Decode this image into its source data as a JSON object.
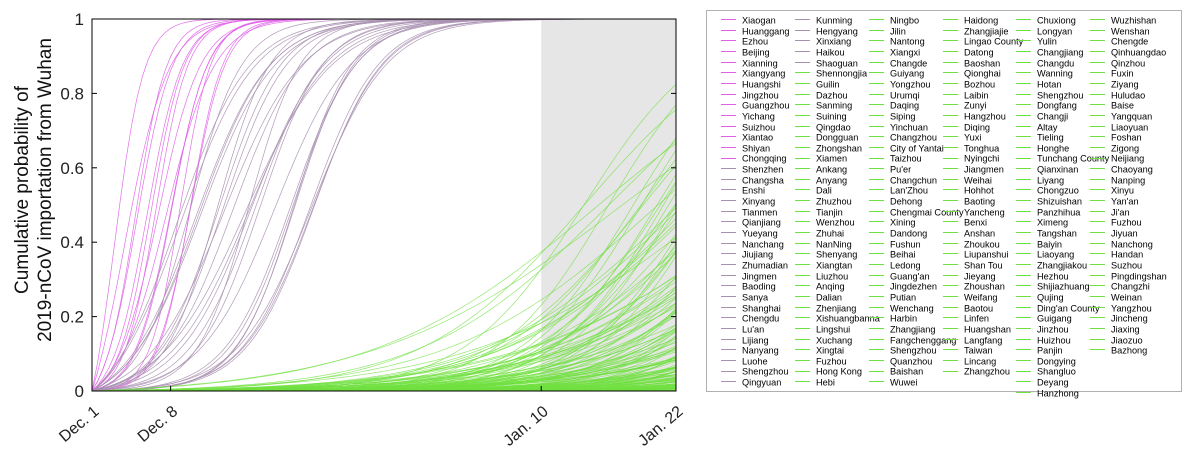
{
  "chart_data": {
    "type": "line",
    "xlabel": "",
    "ylabel_lines": [
      "Cumulative probability of",
      "2019-nCoV importation from Wuhan"
    ],
    "x_ticks": [
      "Dec. 1",
      "Dec. 8",
      "Jan. 10",
      "Jan. 22"
    ],
    "x_tick_days": [
      0,
      7,
      40,
      52
    ],
    "xlim_days": [
      0,
      52
    ],
    "y_ticks": [
      "0",
      "0.2",
      "0.4",
      "0.6",
      "0.8",
      "1"
    ],
    "ylim": [
      0,
      1
    ],
    "shaded_region_days": [
      40,
      52
    ],
    "grid": false,
    "legend_position": "right",
    "colors": {
      "early": "#e060e8",
      "mid": "#a890b0",
      "late": "#70e040",
      "shade": "#e6e6e6"
    },
    "legend_columns": [
      [
        "Xiaogan",
        "Huanggang",
        "Ezhou",
        "Beijing",
        "Xianning",
        "Xiangyang",
        "Huangshi",
        "Jingzhou",
        "Guangzhou",
        "Yichang",
        "Suizhou",
        "Xiantao",
        "Shiyan",
        "Chongqing",
        "Shenzhen",
        "Changsha",
        "Enshi",
        "Xinyang",
        "Tianmen",
        "Qianjiang",
        "Yueyang",
        "Nanchang",
        "Jiujiang",
        "Zhumadian",
        "Jingmen",
        "Baoding",
        "Sanya",
        "Shanghai",
        "Chengdu",
        "Lu'an",
        "Lijiang",
        "Nanyang",
        "Luohe",
        "Shengzhou",
        "Qingyuan"
      ],
      [
        "Kunming",
        "Hengyang",
        "Xinxiang",
        "Haikou",
        "Shaoguan",
        "Shennongjia",
        "Guilin",
        "Dazhou",
        "Sanming",
        "Suining",
        "Qingdao",
        "Dongguan",
        "Zhongshan",
        "Xiamen",
        "Ankang",
        "Anyang",
        "Dali",
        "Zhuzhou",
        "Tianjin",
        "Wenzhou",
        "Zhuhai",
        "NanNing",
        "Shenyang",
        "Xiangtan",
        "Liuzhou",
        "Anqing",
        "Dalian",
        "Zhenjiang",
        "Xishuangbanna",
        "Lingshui",
        "Xuchang",
        "Xingtai",
        "Fuzhou",
        "Hong Kong",
        "Hebi"
      ],
      [
        "Ningbo",
        "Jilin",
        "Nantong",
        "Xiangxi",
        "Changde",
        "Guiyang",
        "Yongzhou",
        "Urumqi",
        "Daqing",
        "Siping",
        "Yinchuan",
        "Changzhou",
        "City of Yantai",
        "Taizhou",
        "Pu'er",
        "Changchun",
        "Lan'Zhou",
        "Dehong",
        "Chengmai County",
        "Xining",
        "Dandong",
        "Fushun",
        "Beihai",
        "Ledong",
        "Guang'an",
        "Jingdezhen",
        "Putian",
        "Wenchang",
        "Harbin",
        "Zhangjiang",
        "Fangchenggang",
        "Shengzhou",
        "Quanzhou",
        "Baishan",
        "Wuwei"
      ],
      [
        "Haidong",
        "Zhangjiajie",
        "Lingao County",
        "Datong",
        "Baoshan",
        "Qionghai",
        "Bozhou",
        "Laibin",
        "Zunyi",
        "Hangzhou",
        "Diqing",
        "Yuxi",
        "Tonghua",
        "Nyingchi",
        "Jiangmen",
        "Weihai",
        "Hohhot",
        "Baoting",
        "Yancheng",
        "Benxi",
        "Anshan",
        "Zhoukou",
        "Liupanshui",
        "Shan Tou",
        "Jieyang",
        "Zhoushan",
        "Weifang",
        "Baotou",
        "Linfen",
        "Huangshan",
        "Langfang",
        "Taiwan",
        "Lincang",
        "Zhangzhou"
      ],
      [
        "Chuxiong",
        "Longyan",
        "Yulin",
        "Changjiang",
        "Changdu",
        "Wanning",
        "Hotan",
        "Shengzhou",
        "Dongfang",
        "Changji",
        "Altay",
        "Tieling",
        "Honghe",
        "Tunchang County",
        "Qianxinan",
        "Liyang",
        "Chongzuo",
        "Shizuishan",
        "Panzhihua",
        "Ximeng",
        "Tangshan",
        "Baiyin",
        "Liaoyang",
        "Zhangjiakou",
        "Hezhou",
        "Shijiazhuang",
        "Qujing",
        "Ding'an County",
        "Guigang",
        "Jinzhou",
        "Huizhou",
        "Panjin",
        "Dongying",
        "Shangluo",
        "Deyang",
        "Hanzhong"
      ],
      [
        "Wuzhishan",
        "Wenshan",
        "Chengde",
        "Qinhuangdao",
        "Qinzhou",
        "Fuxin",
        "Ziyang",
        "Huludao",
        "Baise",
        "Yangquan",
        "Liaoyuan",
        "Foshan",
        "Zigong",
        "Neijiang",
        "Chaoyang",
        "Nanping",
        "Xinyu",
        "Yan'an",
        "Ji'an",
        "Fuzhou",
        "Jiyuan",
        "Nanchong",
        "Handan",
        "Suzhou",
        "Pingdingshan",
        "Changzhi",
        "Weinan",
        "Yangzhou",
        "Jincheng",
        "Jiaxing",
        "Jiaozuo",
        "Bazhong"
      ]
    ]
  }
}
